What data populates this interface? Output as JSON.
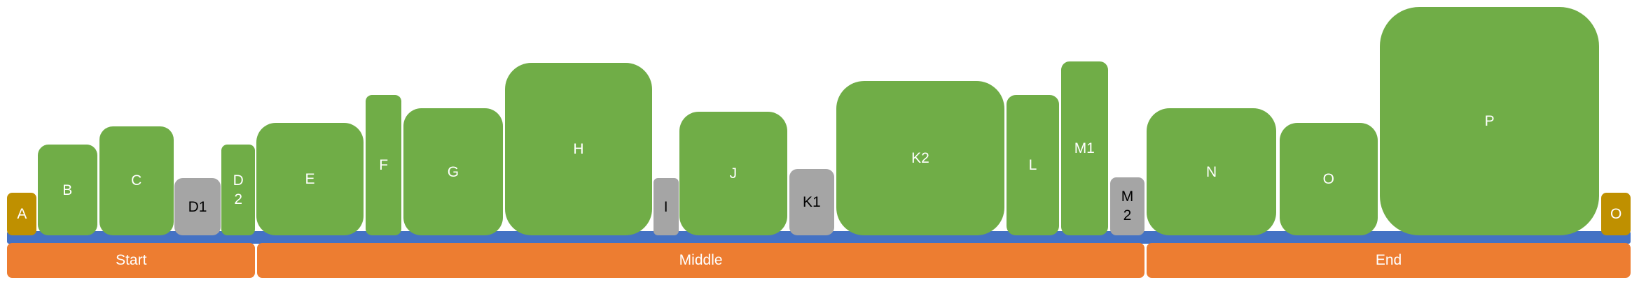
{
  "blocks": [
    {
      "label": "A"
    },
    {
      "label": "B"
    },
    {
      "label": "C"
    },
    {
      "label": "D1"
    },
    {
      "label": "D2"
    },
    {
      "label": "E"
    },
    {
      "label": "F"
    },
    {
      "label": "G"
    },
    {
      "label": "H"
    },
    {
      "label": "I"
    },
    {
      "label": "J"
    },
    {
      "label": "K1"
    },
    {
      "label": "K2"
    },
    {
      "label": "L"
    },
    {
      "label": "M1"
    },
    {
      "label": "M2"
    },
    {
      "label": "N"
    },
    {
      "label": "O"
    },
    {
      "label": "P"
    },
    {
      "label": "O"
    }
  ],
  "phases": [
    {
      "label": "Start"
    },
    {
      "label": "Middle"
    },
    {
      "label": "End"
    }
  ]
}
